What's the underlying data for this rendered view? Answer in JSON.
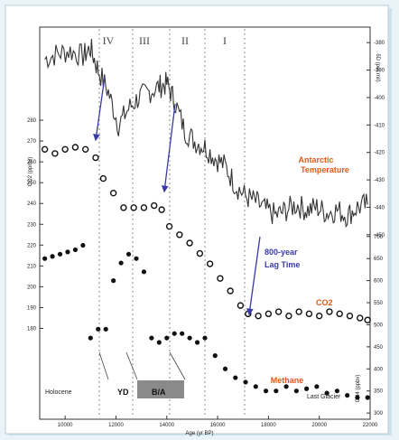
{
  "chart_data": {
    "type": "scatter",
    "xlabel": "Age (yr BP)",
    "x_ticks": [
      "10000",
      "12000",
      "14000",
      "16000",
      "18000",
      "20000",
      "22000"
    ],
    "xlim": [
      9000,
      22000
    ],
    "left_axis": {
      "label": "CO2 (ppmv)",
      "ticks": [
        "280",
        "270",
        "260",
        "250",
        "240",
        "230",
        "220",
        "210",
        "200",
        "190",
        "180"
      ],
      "ylim": [
        175,
        290
      ]
    },
    "right_axis_top": {
      "label": "δD (per mil)",
      "ticks": [
        "-380",
        "-390",
        "-400",
        "-410",
        "-420",
        "-430",
        "-440",
        "-450"
      ],
      "ylim": [
        -455,
        -375
      ]
    },
    "right_axis_bottom": {
      "label": "CH4 (ppbv)",
      "ticks": [
        "700",
        "650",
        "600",
        "550",
        "500",
        "450",
        "400",
        "350",
        "300"
      ],
      "ylim": [
        290,
        720
      ]
    },
    "periods": [
      "IV",
      "III",
      "II",
      "I"
    ],
    "stage_labels": {
      "holocene": "Holocene",
      "yd": "YD",
      "ba": "B/A",
      "glacial": "Last Glacier"
    },
    "annotations": {
      "antarctic": "Antarctic Temperature",
      "lag": "800-year Lag Time",
      "co2": "CO2",
      "methane": "Methane"
    },
    "series": [
      {
        "name": "Antarctic Temperature",
        "axis": "right_axis_top",
        "x": [
          9200,
          9700,
          10200,
          10700,
          11000,
          11300,
          11700,
          12100,
          12500,
          12900,
          13300,
          13700,
          14000,
          14300,
          14700,
          15100,
          15500,
          15900,
          16300,
          16700,
          17100,
          17500,
          17900,
          18300,
          18700,
          19100,
          19500,
          19900,
          20300,
          20700,
          21100,
          21500,
          21900
        ],
        "y": [
          -386,
          -384,
          -383,
          -385,
          -382,
          -390,
          -398,
          -410,
          -404,
          -400,
          -398,
          -396,
          -395,
          -401,
          -412,
          -416,
          -418,
          -422,
          -425,
          -432,
          -436,
          -438,
          -441,
          -443,
          -441,
          -439,
          -441,
          -440,
          -442,
          -441,
          -443,
          -440,
          -439
        ]
      },
      {
        "name": "CO2",
        "axis": "left_axis",
        "x": [
          9200,
          9600,
          10000,
          10400,
          10800,
          11200,
          11500,
          11900,
          12300,
          12700,
          13100,
          13500,
          13800,
          14100,
          14500,
          14900,
          15300,
          15700,
          16100,
          16500,
          16900,
          17200,
          17600,
          18000,
          18400,
          18800,
          19200,
          19600,
          20000,
          20400,
          20800,
          21200,
          21600,
          21900
        ],
        "y": [
          266,
          264,
          266,
          267,
          266,
          262,
          252,
          245,
          238,
          238,
          238,
          239,
          237,
          229,
          225,
          221,
          216,
          211,
          204,
          198,
          191,
          187,
          186,
          187,
          188,
          186,
          188,
          187,
          186,
          188,
          187,
          186,
          185,
          184
        ]
      },
      {
        "name": "Methane",
        "axis": "right_axis_bottom",
        "x": [
          9200,
          9500,
          9800,
          10100,
          10400,
          10700,
          11000,
          11300,
          11600,
          11900,
          12200,
          12500,
          12800,
          13100,
          13400,
          13700,
          14000,
          14300,
          14600,
          14900,
          15200,
          15500,
          15900,
          16300,
          16700,
          17100,
          17500,
          17900,
          18300,
          18700,
          19100,
          19500,
          19900,
          20300,
          20700,
          21100,
          21500,
          21900
        ],
        "y": [
          650,
          655,
          660,
          665,
          670,
          680,
          470,
          490,
          490,
          600,
          640,
          660,
          650,
          620,
          470,
          460,
          470,
          480,
          480,
          470,
          460,
          470,
          430,
          400,
          380,
          370,
          360,
          350,
          350,
          360,
          350,
          355,
          360,
          345,
          350,
          340,
          335,
          335
        ]
      }
    ]
  }
}
